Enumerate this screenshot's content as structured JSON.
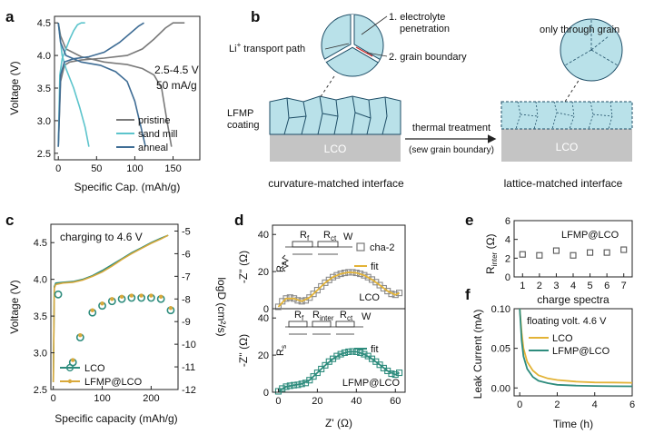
{
  "panels": {
    "a": {
      "label": "a",
      "ylabel": "Voltage (V)",
      "xlabel": "Specific Cap. (mAh/g)",
      "note_range": "2.5-4.5 V",
      "note_rate": "50 mA/g",
      "yticks": [
        "2.5",
        "3.0",
        "3.5",
        "4.0",
        "4.5"
      ],
      "xticks": [
        "0",
        "50",
        "100",
        "150"
      ],
      "legend": [
        {
          "name": "pristine",
          "color": "#7a7a7a"
        },
        {
          "name": "sand mill",
          "color": "#5cc4cc"
        },
        {
          "name": "anneal",
          "color": "#3f6d95"
        }
      ]
    },
    "b": {
      "label": "b",
      "callout1": "1. electrolyte",
      "callout1b": "penetration",
      "callout2": "2. grain boundary",
      "li_path_prefix": "Li",
      "li_path_sup": "+",
      "li_path_suffix": " transport path",
      "coating_line1": "LFMP",
      "coating_line2": "coating",
      "substrate_left": "LCO",
      "substrate_right": "LCO",
      "arrow_label": "thermal treatment",
      "arrow_sublabel": "(sew grain boundary)",
      "only_grain": "only through grain",
      "left_caption": "curvature-matched interface",
      "right_caption": "lattice-matched interface"
    },
    "c": {
      "label": "c",
      "note": "charging to 4.6 V",
      "ylabel_left": "Voltage (V)",
      "ylabel_right": "logD (cm²/s)",
      "xlabel": "Specific capacity (mAh/g)",
      "yticks_left": [
        "2.5",
        "3.0",
        "3.5",
        "4.0",
        "4.5"
      ],
      "yticks_right": [
        "-5",
        "-6",
        "-7",
        "-8",
        "-9",
        "-10",
        "-11",
        "-12"
      ],
      "xticks": [
        "0",
        "100",
        "200"
      ],
      "legend": [
        {
          "name": "LCO",
          "color": "#2e8c7d"
        },
        {
          "name": "LFMP@LCO",
          "color": "#d9a93b"
        }
      ]
    },
    "d": {
      "label": "d",
      "ylabel_top": "-Z'' (Ω)",
      "ylabel_bottom": "-Z'' (Ω)",
      "xlabel": "Z' (Ω)",
      "yticks": [
        "0",
        "20",
        "40"
      ],
      "xticks": [
        "0",
        "20",
        "40",
        "60"
      ],
      "legend_data": "cha-2",
      "legend_fit": "fit",
      "legend_fit2": "fit",
      "label_top": "LCO",
      "label_bottom": "LFMP@LCO",
      "circuit_top": {
        "r1": "R",
        "r1sub": "f",
        "r2": "R",
        "r2sub": "ct",
        "w": "W",
        "rs": "R",
        "rssub": "s"
      },
      "circuit_bottom": {
        "r1": "R",
        "r1sub": "f",
        "r2": "R",
        "r2sub": "inter",
        "r3": "R",
        "r3sub": "ct",
        "w": "W",
        "rs": "R",
        "rssub": "s"
      }
    },
    "e": {
      "label": "e",
      "title": "LFMP@LCO",
      "ylabel": "R",
      "ylabel_sub": "inter",
      "ylabel_unit": " (Ω)",
      "xlabel": "charge spectra",
      "yticks": [
        "0",
        "2",
        "4",
        "6"
      ],
      "xticks": [
        "1",
        "2",
        "3",
        "4",
        "5",
        "6",
        "7"
      ]
    },
    "f": {
      "label": "f",
      "note": "floating volt. 4.6 V",
      "ylabel": "Leak Current (mA)",
      "xlabel": "Time (h)",
      "yticks": [
        "0.00",
        "0.05",
        "0.10"
      ],
      "xticks": [
        "0",
        "2",
        "4",
        "6"
      ],
      "legend": [
        {
          "name": "LCO",
          "color": "#e3b336"
        },
        {
          "name": "LFMP@LCO",
          "color": "#2e8c7d"
        }
      ]
    }
  },
  "chart_data": [
    {
      "type": "line",
      "panel": "a",
      "xlabel": "Specific Cap. (mAh/g)",
      "ylabel": "Voltage (V)",
      "xlim": [
        -5,
        185
      ],
      "ylim": [
        2.4,
        4.6
      ],
      "series": [
        {
          "name": "pristine charge",
          "x": [
            0,
            3,
            8,
            15,
            30,
            60,
            90,
            110,
            125,
            140,
            150,
            155,
            165
          ],
          "y": [
            2.6,
            3.6,
            3.85,
            3.9,
            3.93,
            3.96,
            4.0,
            4.1,
            4.25,
            4.42,
            4.5,
            4.5,
            4.5
          ]
        },
        {
          "name": "pristine discharge",
          "x": [
            0,
            3,
            10,
            30,
            60,
            90,
            110,
            125,
            135,
            142,
            148
          ],
          "y": [
            4.5,
            4.3,
            4.1,
            3.98,
            3.9,
            3.86,
            3.8,
            3.7,
            3.5,
            3.0,
            2.6
          ]
        },
        {
          "name": "sand mill charge",
          "x": [
            0,
            2,
            5,
            10,
            15,
            20,
            25,
            30,
            35
          ],
          "y": [
            2.6,
            3.7,
            3.95,
            4.1,
            4.25,
            4.38,
            4.47,
            4.5,
            4.5
          ]
        },
        {
          "name": "sand mill discharge",
          "x": [
            0,
            2,
            5,
            10,
            20,
            28,
            35,
            40
          ],
          "y": [
            4.5,
            4.3,
            4.0,
            3.8,
            3.5,
            3.2,
            2.9,
            2.6
          ]
        },
        {
          "name": "anneal charge",
          "x": [
            0,
            3,
            8,
            20,
            40,
            60,
            80,
            95,
            105,
            112
          ],
          "y": [
            2.6,
            3.7,
            3.9,
            3.95,
            3.98,
            4.05,
            4.2,
            4.35,
            4.45,
            4.5
          ]
        },
        {
          "name": "anneal discharge",
          "x": [
            0,
            3,
            10,
            30,
            55,
            75,
            90,
            100,
            108,
            114
          ],
          "y": [
            4.5,
            4.2,
            4.0,
            3.9,
            3.85,
            3.75,
            3.6,
            3.3,
            2.9,
            2.6
          ]
        }
      ]
    },
    {
      "type": "line+scatter",
      "panel": "c",
      "xlabel": "Specific capacity (mAh/g)",
      "ylabel": "Voltage (V)",
      "xlim": [
        -5,
        255
      ],
      "ylim": [
        2.5,
        4.75
      ],
      "y2lim": [
        -12,
        -4.7
      ],
      "series": [
        {
          "name": "LCO voltage",
          "x": [
            0,
            2,
            5,
            20,
            40,
            60,
            80,
            100,
            120,
            140,
            160,
            180,
            200,
            220,
            235
          ],
          "y": [
            2.6,
            3.9,
            3.95,
            3.96,
            3.97,
            4.0,
            4.05,
            4.12,
            4.2,
            4.28,
            4.36,
            4.43,
            4.5,
            4.56,
            4.6
          ]
        },
        {
          "name": "LFMP@LCO voltage",
          "x": [
            0,
            2,
            5,
            20,
            40,
            60,
            80,
            100,
            120,
            140,
            160,
            180,
            200,
            220,
            235
          ],
          "y": [
            2.6,
            3.88,
            3.93,
            3.95,
            3.96,
            3.99,
            4.04,
            4.1,
            4.18,
            4.27,
            4.35,
            4.42,
            4.49,
            4.55,
            4.6
          ]
        },
        {
          "name": "LCO logD",
          "x": [
            10,
            40,
            55,
            80,
            100,
            120,
            140,
            160,
            180,
            200,
            220,
            240
          ],
          "y": [
            -7.8,
            -10.8,
            -9.7,
            -8.6,
            -8.3,
            -8.1,
            -8.0,
            -7.95,
            -7.95,
            -7.95,
            -8.0,
            -8.5
          ]
        },
        {
          "name": "LFMP@LCO logD",
          "x": [
            40,
            55,
            80,
            100,
            120,
            140,
            160,
            180,
            200,
            220,
            240
          ],
          "y": [
            -10.7,
            -9.6,
            -8.5,
            -8.2,
            -8.0,
            -7.9,
            -7.85,
            -7.85,
            -7.85,
            -7.9,
            -8.4
          ]
        }
      ]
    },
    {
      "type": "scatter+line",
      "panel": "d-top",
      "xlabel": "Z' (Ω)",
      "ylabel": "-Z'' (Ω)",
      "xlim": [
        -3,
        65
      ],
      "ylim": [
        0,
        45
      ],
      "series": [
        {
          "name": "cha-2",
          "x": [
            0,
            2,
            4,
            6,
            8,
            10,
            12,
            14,
            16,
            18,
            20,
            22,
            24,
            26,
            28,
            30,
            32,
            34,
            36,
            38,
            40,
            42,
            44,
            46,
            48,
            50,
            52,
            54,
            56,
            58,
            60,
            62
          ],
          "y": [
            1,
            4,
            5.5,
            6,
            5.5,
            4.5,
            4,
            4.5,
            6,
            8,
            10,
            12,
            14,
            15.5,
            17,
            18,
            18.8,
            19.3,
            19.6,
            19.6,
            19.3,
            18.8,
            18,
            17,
            15.7,
            14.3,
            12.7,
            11,
            9.5,
            8,
            7.5,
            8.5
          ]
        },
        {
          "name": "fit",
          "x": [
            0,
            4,
            8,
            12,
            16,
            20,
            24,
            28,
            32,
            36,
            40,
            44,
            48,
            52,
            56,
            60,
            62
          ],
          "y": [
            1,
            5.5,
            5.5,
            4,
            6,
            10,
            14,
            17,
            18.8,
            19.6,
            19.3,
            18,
            15.7,
            12.7,
            9.5,
            7.5,
            8.5
          ]
        }
      ]
    },
    {
      "type": "scatter+line",
      "panel": "d-bottom",
      "xlabel": "Z' (Ω)",
      "ylabel": "-Z'' (Ω)",
      "xlim": [
        -3,
        65
      ],
      "ylim": [
        0,
        45
      ],
      "series": [
        {
          "name": "data",
          "x": [
            0,
            2,
            4,
            6,
            8,
            10,
            12,
            14,
            16,
            18,
            20,
            22,
            24,
            26,
            28,
            30,
            32,
            34,
            36,
            38,
            40,
            42,
            44,
            46,
            48,
            50,
            52,
            54,
            56,
            58,
            60,
            62
          ],
          "y": [
            0.5,
            2,
            3,
            3.5,
            3.8,
            4,
            4.5,
            5,
            6.5,
            8.5,
            10.5,
            12.5,
            14.5,
            16.5,
            18,
            19.5,
            20.5,
            21.3,
            21.8,
            22,
            21.8,
            21.3,
            20.5,
            19.5,
            18,
            16.5,
            14.8,
            13,
            11.5,
            10,
            9.5,
            10.5
          ]
        },
        {
          "name": "fit",
          "x": [
            0,
            4,
            8,
            12,
            16,
            20,
            24,
            28,
            32,
            36,
            40,
            44,
            48,
            52,
            56,
            60,
            62
          ],
          "y": [
            0.5,
            3,
            3.8,
            4.5,
            6.5,
            10.5,
            14.5,
            18,
            20.5,
            21.8,
            21.8,
            20.5,
            18,
            14.8,
            11.5,
            9.5,
            10.5
          ]
        }
      ]
    },
    {
      "type": "scatter",
      "panel": "e",
      "title": "LFMP@LCO",
      "xlabel": "charge spectra",
      "ylabel": "R_inter (Ω)",
      "xlim": [
        0.5,
        7.5
      ],
      "ylim": [
        0,
        6
      ],
      "x": [
        1,
        2,
        3,
        4,
        5,
        6,
        7
      ],
      "y": [
        2.4,
        2.3,
        2.8,
        2.3,
        2.6,
        2.6,
        2.9
      ]
    },
    {
      "type": "line",
      "panel": "f",
      "xlabel": "Time (h)",
      "ylabel": "Leak Current (mA)",
      "xlim": [
        -0.3,
        6
      ],
      "ylim": [
        -0.01,
        0.1
      ],
      "series": [
        {
          "name": "LCO",
          "x": [
            0,
            0.1,
            0.2,
            0.4,
            0.7,
            1,
            1.5,
            2,
            3,
            4,
            5,
            6
          ],
          "y": [
            0.1,
            0.07,
            0.05,
            0.033,
            0.022,
            0.016,
            0.012,
            0.01,
            0.008,
            0.007,
            0.0068,
            0.0065
          ]
        },
        {
          "name": "LFMP@LCO",
          "x": [
            0,
            0.1,
            0.2,
            0.4,
            0.7,
            1,
            1.5,
            2,
            3,
            4,
            5,
            6
          ],
          "y": [
            0.1,
            0.06,
            0.04,
            0.024,
            0.014,
            0.009,
            0.006,
            0.004,
            0.003,
            0.0025,
            0.0022,
            0.002
          ]
        }
      ]
    }
  ]
}
